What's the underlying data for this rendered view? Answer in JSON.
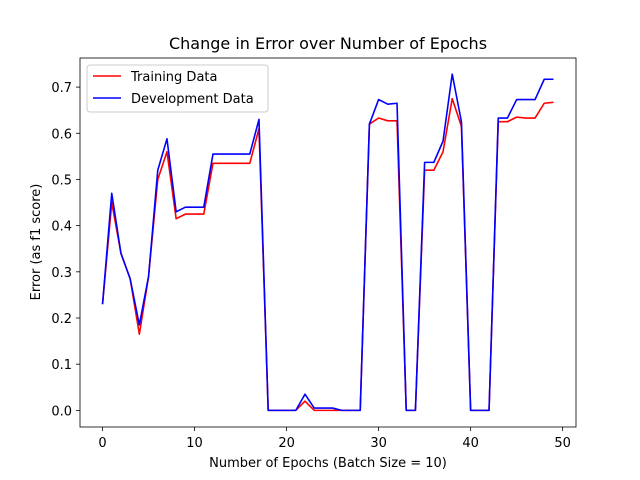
{
  "chart_data": {
    "type": "line",
    "title": "Change in Error over Number of Epochs",
    "xlabel": "Number of Epochs (Batch Size = 10)",
    "ylabel": "Error (as f1 score)",
    "xlim": [
      -2.45,
      51.45
    ],
    "ylim": [
      -0.036,
      0.763
    ],
    "xticks": [
      0,
      10,
      20,
      30,
      40,
      50
    ],
    "yticks": [
      0.0,
      0.1,
      0.2,
      0.3,
      0.4,
      0.5,
      0.6,
      0.7
    ],
    "grid": false,
    "legend_position": "upper-left",
    "x": [
      0,
      1,
      2,
      3,
      4,
      5,
      6,
      7,
      8,
      9,
      10,
      11,
      12,
      13,
      14,
      15,
      16,
      17,
      18,
      19,
      20,
      21,
      22,
      23,
      24,
      25,
      26,
      27,
      28,
      29,
      30,
      31,
      32,
      33,
      34,
      35,
      36,
      37,
      38,
      39,
      40,
      41,
      42,
      43,
      44,
      45,
      46,
      47,
      48,
      49
    ],
    "series": [
      {
        "name": "Training Data",
        "color": "#ff0000",
        "values": [
          0.23,
          0.45,
          0.34,
          0.285,
          0.165,
          0.29,
          0.5,
          0.56,
          0.415,
          0.425,
          0.425,
          0.425,
          0.535,
          0.535,
          0.535,
          0.535,
          0.535,
          0.61,
          0.0,
          0.0,
          0.0,
          0.0,
          0.02,
          0.0,
          0.0,
          0.0,
          0.0,
          0.0,
          0.0,
          0.62,
          0.633,
          0.627,
          0.627,
          0.0,
          0.0,
          0.52,
          0.52,
          0.56,
          0.675,
          0.615,
          0.0,
          0.0,
          0.0,
          0.625,
          0.625,
          0.635,
          0.633,
          0.633,
          0.665,
          0.667
        ]
      },
      {
        "name": "Development Data",
        "color": "#0000ff",
        "values": [
          0.23,
          0.47,
          0.34,
          0.285,
          0.185,
          0.29,
          0.52,
          0.588,
          0.43,
          0.44,
          0.44,
          0.44,
          0.555,
          0.555,
          0.555,
          0.555,
          0.555,
          0.63,
          0.0,
          0.0,
          0.0,
          0.0,
          0.035,
          0.005,
          0.005,
          0.005,
          0.0,
          0.0,
          0.0,
          0.62,
          0.673,
          0.663,
          0.665,
          0.0,
          0.0,
          0.537,
          0.537,
          0.583,
          0.728,
          0.625,
          0.0,
          0.0,
          0.0,
          0.633,
          0.633,
          0.673,
          0.673,
          0.673,
          0.717,
          0.717
        ]
      }
    ]
  }
}
